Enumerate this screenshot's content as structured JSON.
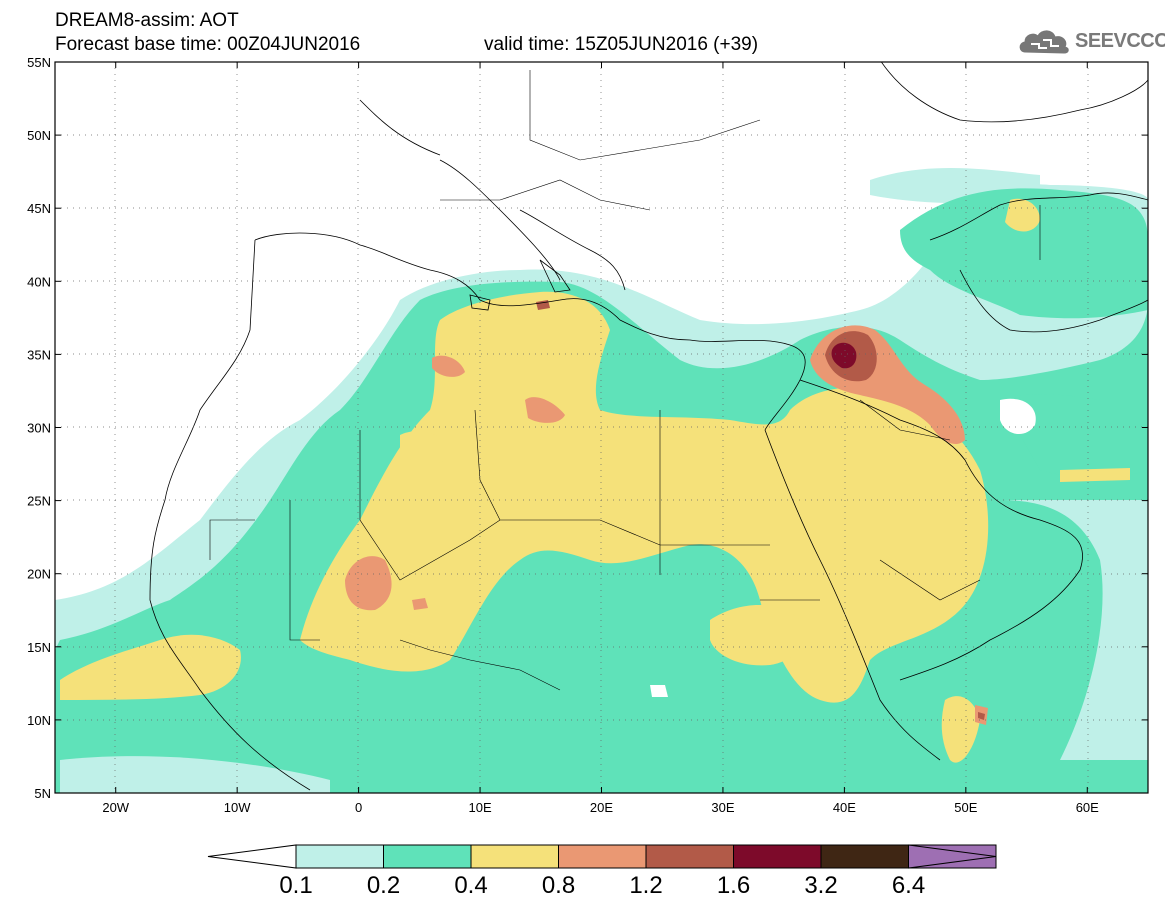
{
  "header": {
    "title": "DREAM8-assim: AOT",
    "base_time": "Forecast base time: 00Z04JUN2016",
    "valid_time": "valid time: 15Z05JUN2016 (+39)",
    "logo_text": "SEEVCCC"
  },
  "map": {
    "lon_range": [
      -25,
      65
    ],
    "lat_range": [
      5,
      55
    ],
    "lat_ticks": [
      {
        "value": 55,
        "label": "55N"
      },
      {
        "value": 50,
        "label": "50N"
      },
      {
        "value": 45,
        "label": "45N"
      },
      {
        "value": 40,
        "label": "40N"
      },
      {
        "value": 35,
        "label": "35N"
      },
      {
        "value": 30,
        "label": "30N"
      },
      {
        "value": 25,
        "label": "25N"
      },
      {
        "value": 20,
        "label": "20N"
      },
      {
        "value": 15,
        "label": "15N"
      },
      {
        "value": 10,
        "label": "10N"
      },
      {
        "value": 5,
        "label": "5N"
      }
    ],
    "lon_ticks": [
      {
        "value": -20,
        "label": "20W"
      },
      {
        "value": -10,
        "label": "10W"
      },
      {
        "value": 0,
        "label": "0"
      },
      {
        "value": 10,
        "label": "10E"
      },
      {
        "value": 20,
        "label": "20E"
      },
      {
        "value": 30,
        "label": "30E"
      },
      {
        "value": 40,
        "label": "40E"
      },
      {
        "value": 50,
        "label": "50E"
      },
      {
        "value": 60,
        "label": "60E"
      }
    ],
    "grid": "dotted"
  },
  "colorbar": {
    "labels": [
      "0.1",
      "0.2",
      "0.4",
      "0.8",
      "1.2",
      "1.6",
      "3.2",
      "6.4"
    ],
    "colors": [
      "#ffffff",
      "#bff0e8",
      "#5fe2b9",
      "#f5e17a",
      "#ea9873",
      "#b25a48",
      "#7d0a2a",
      "#3f2614",
      "#9e6fb3"
    ]
  }
}
